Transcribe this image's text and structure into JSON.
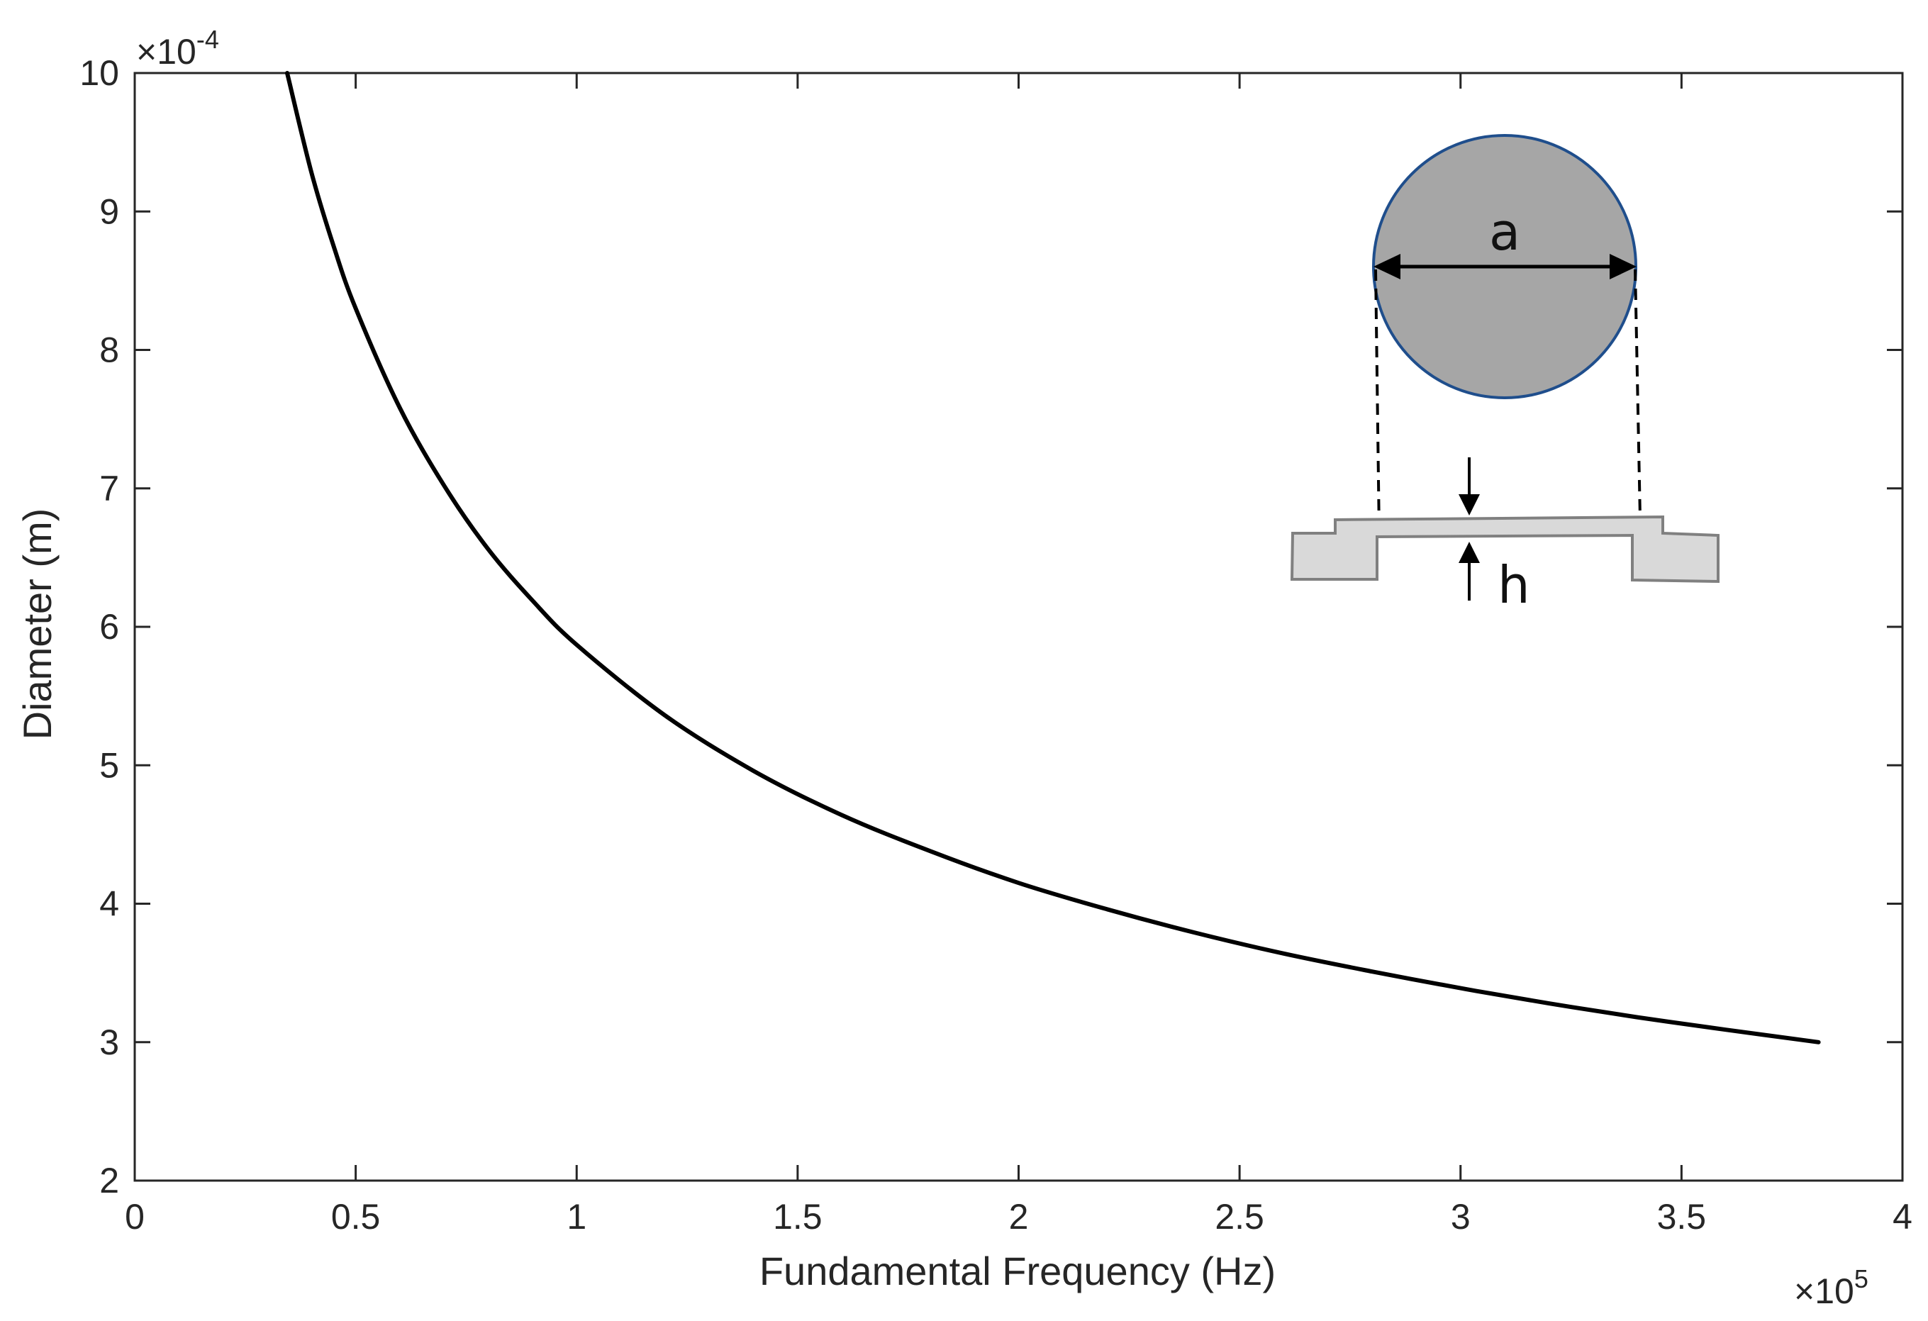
{
  "chart_data": {
    "type": "line",
    "title": "",
    "xlabel": "Fundamental Frequency (Hz)",
    "ylabel": "Diameter (m)",
    "x_exponent_label": "×10",
    "x_exponent": "5",
    "y_exponent_label": "×10",
    "y_exponent": "-4",
    "xlim": [
      0,
      4
    ],
    "ylim": [
      2,
      10
    ],
    "xticks": [
      0,
      0.5,
      1,
      1.5,
      2,
      2.5,
      3,
      3.5,
      4
    ],
    "xtick_labels": [
      "0",
      "0.5",
      "1",
      "1.5",
      "2",
      "2.5",
      "3",
      "3.5",
      "4"
    ],
    "yticks": [
      2,
      3,
      4,
      5,
      6,
      7,
      8,
      9,
      10
    ],
    "ytick_labels": [
      "2",
      "3",
      "4",
      "5",
      "6",
      "7",
      "8",
      "9",
      "10"
    ],
    "grid": false,
    "series": [
      {
        "color": "#000000",
        "x": [
          0.345,
          0.4,
          0.45,
          0.5,
          0.6,
          0.7,
          0.8,
          0.9,
          1.0,
          1.2,
          1.4,
          1.6,
          1.8,
          2.0,
          2.2,
          2.4,
          2.6,
          2.8,
          3.0,
          3.2,
          3.4,
          3.6,
          3.81
        ],
        "y": [
          10.0,
          9.28,
          8.75,
          8.3,
          7.58,
          7.02,
          6.56,
          6.19,
          5.87,
          5.36,
          4.96,
          4.64,
          4.38,
          4.15,
          3.96,
          3.79,
          3.64,
          3.51,
          3.39,
          3.28,
          3.18,
          3.09,
          3.0
        ]
      }
    ],
    "inset": {
      "diameter_label": "a",
      "thickness_label": "h",
      "disk_fill": "#a6a6a6",
      "disk_edge": "#1f4e8c",
      "membrane_fill": "#d9d9d9",
      "membrane_edge": "#808080"
    }
  }
}
